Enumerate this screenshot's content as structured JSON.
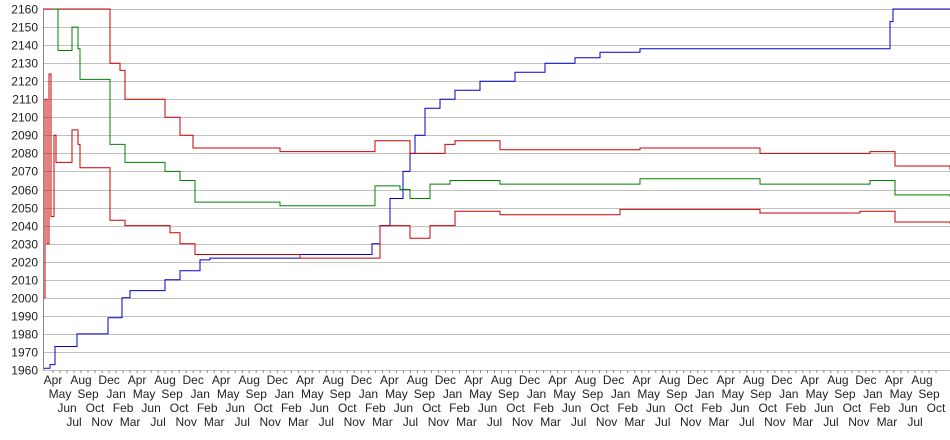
{
  "chart_data": {
    "type": "line",
    "title": "",
    "xlabel": "",
    "ylabel": "",
    "ylim": [
      1960,
      2160
    ],
    "y_ticks": [
      1960,
      1970,
      1980,
      1990,
      2000,
      2010,
      2020,
      2030,
      2040,
      2050,
      2060,
      2070,
      2080,
      2090,
      2100,
      2110,
      2120,
      2130,
      2140,
      2150,
      2160
    ],
    "grid": "horizontal",
    "legend": "none",
    "x_range": [
      0,
      907
    ],
    "x_tick_labels": [
      "Apr",
      "May",
      "Jun",
      "Jul",
      "Aug",
      "Sep",
      "Oct",
      "Nov",
      "Dec",
      "Jan",
      "Feb",
      "Mar",
      "Apr",
      "May",
      "Jun",
      "Jul",
      "Aug",
      "Sep",
      "Oct",
      "Nov",
      "Dec",
      "Jan",
      "Feb",
      "Mar",
      "Apr",
      "May",
      "Jun",
      "Jul",
      "Aug",
      "Sep",
      "Oct",
      "Nov",
      "Dec",
      "Jan",
      "Feb",
      "Mar",
      "Apr",
      "May",
      "Jun",
      "Jul",
      "Aug",
      "Sep",
      "Oct",
      "Nov",
      "Dec",
      "Jan",
      "Feb",
      "Mar",
      "Apr",
      "May",
      "Jun",
      "Jul",
      "Aug",
      "Sep",
      "Oct",
      "Nov",
      "Dec",
      "Jan",
      "Feb",
      "Mar",
      "Apr",
      "May",
      "Jun",
      "Jul",
      "Aug",
      "Sep",
      "Oct",
      "Nov",
      "Dec",
      "Jan",
      "Feb",
      "Mar",
      "Apr",
      "May",
      "Jun",
      "Jul",
      "Aug",
      "Sep",
      "Oct",
      "Nov",
      "Dec",
      "Jan",
      "Feb",
      "Mar",
      "Apr",
      "May",
      "Jun",
      "Jul",
      "Aug",
      "Sep",
      "Oct",
      "Nov",
      "Dec",
      "Jan",
      "Feb",
      "Mar",
      "Apr",
      "May",
      "Jun",
      "Jul",
      "Aug",
      "Sep",
      "Oct",
      "Nov",
      "Dec",
      "Jan",
      "Feb",
      "Mar",
      "Apr",
      "May",
      "Jun",
      "Jul",
      "Aug",
      "Sep",
      "Oct",
      "Nov",
      "Dec",
      "Jan",
      "Feb",
      "Mar",
      "Apr",
      "May",
      "Jun",
      "Jul",
      "Aug",
      "Sep",
      "Oct"
    ],
    "series": [
      {
        "color": "#0000cc",
        "points": [
          [
            0,
            1961
          ],
          [
            7,
            1963
          ],
          [
            12,
            1973
          ],
          [
            34,
            1980
          ],
          [
            65,
            1989
          ],
          [
            79,
            2000
          ],
          [
            87,
            2004
          ],
          [
            122,
            2010
          ],
          [
            137,
            2015
          ],
          [
            157,
            2021
          ],
          [
            167,
            2022
          ],
          [
            257,
            2024
          ],
          [
            329,
            2030
          ],
          [
            337,
            2040
          ],
          [
            347,
            2055
          ],
          [
            360,
            2070
          ],
          [
            367,
            2080
          ],
          [
            372,
            2090
          ],
          [
            382,
            2105
          ],
          [
            397,
            2110
          ],
          [
            412,
            2115
          ],
          [
            437,
            2120
          ],
          [
            472,
            2125
          ],
          [
            502,
            2130
          ],
          [
            532,
            2133
          ],
          [
            557,
            2136
          ],
          [
            597,
            2138
          ],
          [
            842,
            2138
          ],
          [
            847,
            2153
          ],
          [
            850,
            2160
          ],
          [
            907,
            2160
          ]
        ]
      },
      {
        "color": "#cc0000",
        "points": [
          [
            0,
            2160
          ],
          [
            64,
            2160
          ],
          [
            67,
            2130
          ],
          [
            77,
            2126
          ],
          [
            82,
            2110
          ],
          [
            117,
            2110
          ],
          [
            122,
            2100
          ],
          [
            132,
            2100
          ],
          [
            137,
            2090
          ],
          [
            150,
            2083
          ],
          [
            217,
            2083
          ],
          [
            237,
            2081
          ],
          [
            327,
            2081
          ],
          [
            332,
            2087
          ],
          [
            357,
            2087
          ],
          [
            367,
            2080
          ],
          [
            402,
            2085
          ],
          [
            412,
            2087
          ],
          [
            437,
            2087
          ],
          [
            457,
            2082
          ],
          [
            557,
            2082
          ],
          [
            597,
            2083
          ],
          [
            717,
            2080
          ],
          [
            827,
            2081
          ],
          [
            852,
            2073
          ],
          [
            907,
            2071
          ]
        ]
      },
      {
        "color": "#008000",
        "points": [
          [
            9,
            2160
          ],
          [
            15,
            2137
          ],
          [
            27,
            2137
          ],
          [
            29,
            2150
          ],
          [
            35,
            2138
          ],
          [
            37,
            2121
          ],
          [
            64,
            2121
          ],
          [
            67,
            2085
          ],
          [
            77,
            2085
          ],
          [
            82,
            2075
          ],
          [
            117,
            2075
          ],
          [
            122,
            2070
          ],
          [
            132,
            2070
          ],
          [
            137,
            2065
          ],
          [
            152,
            2053
          ],
          [
            217,
            2053
          ],
          [
            237,
            2051
          ],
          [
            327,
            2051
          ],
          [
            332,
            2062
          ],
          [
            357,
            2060
          ],
          [
            367,
            2055
          ],
          [
            387,
            2063
          ],
          [
            407,
            2065
          ],
          [
            457,
            2063
          ],
          [
            557,
            2063
          ],
          [
            597,
            2066
          ],
          [
            717,
            2063
          ],
          [
            827,
            2065
          ],
          [
            852,
            2057
          ],
          [
            907,
            2056
          ]
        ]
      },
      {
        "color": "#cc0000",
        "points": [
          [
            0,
            2000
          ],
          [
            2,
            2110
          ],
          [
            4,
            2030
          ],
          [
            6,
            2124
          ],
          [
            8,
            2045
          ],
          [
            11,
            2090
          ],
          [
            13,
            2075
          ],
          [
            27,
            2075
          ],
          [
            29,
            2093
          ],
          [
            35,
            2085
          ],
          [
            37,
            2072
          ],
          [
            64,
            2072
          ],
          [
            67,
            2043
          ],
          [
            77,
            2043
          ],
          [
            82,
            2040
          ],
          [
            117,
            2040
          ],
          [
            127,
            2036
          ],
          [
            137,
            2030
          ],
          [
            152,
            2024
          ],
          [
            217,
            2024
          ],
          [
            257,
            2022
          ],
          [
            327,
            2022
          ],
          [
            337,
            2040
          ],
          [
            367,
            2033
          ],
          [
            387,
            2040
          ],
          [
            412,
            2048
          ],
          [
            457,
            2046
          ],
          [
            557,
            2046
          ],
          [
            577,
            2049
          ],
          [
            717,
            2047
          ],
          [
            817,
            2048
          ],
          [
            852,
            2042
          ],
          [
            907,
            2041
          ]
        ]
      }
    ]
  }
}
